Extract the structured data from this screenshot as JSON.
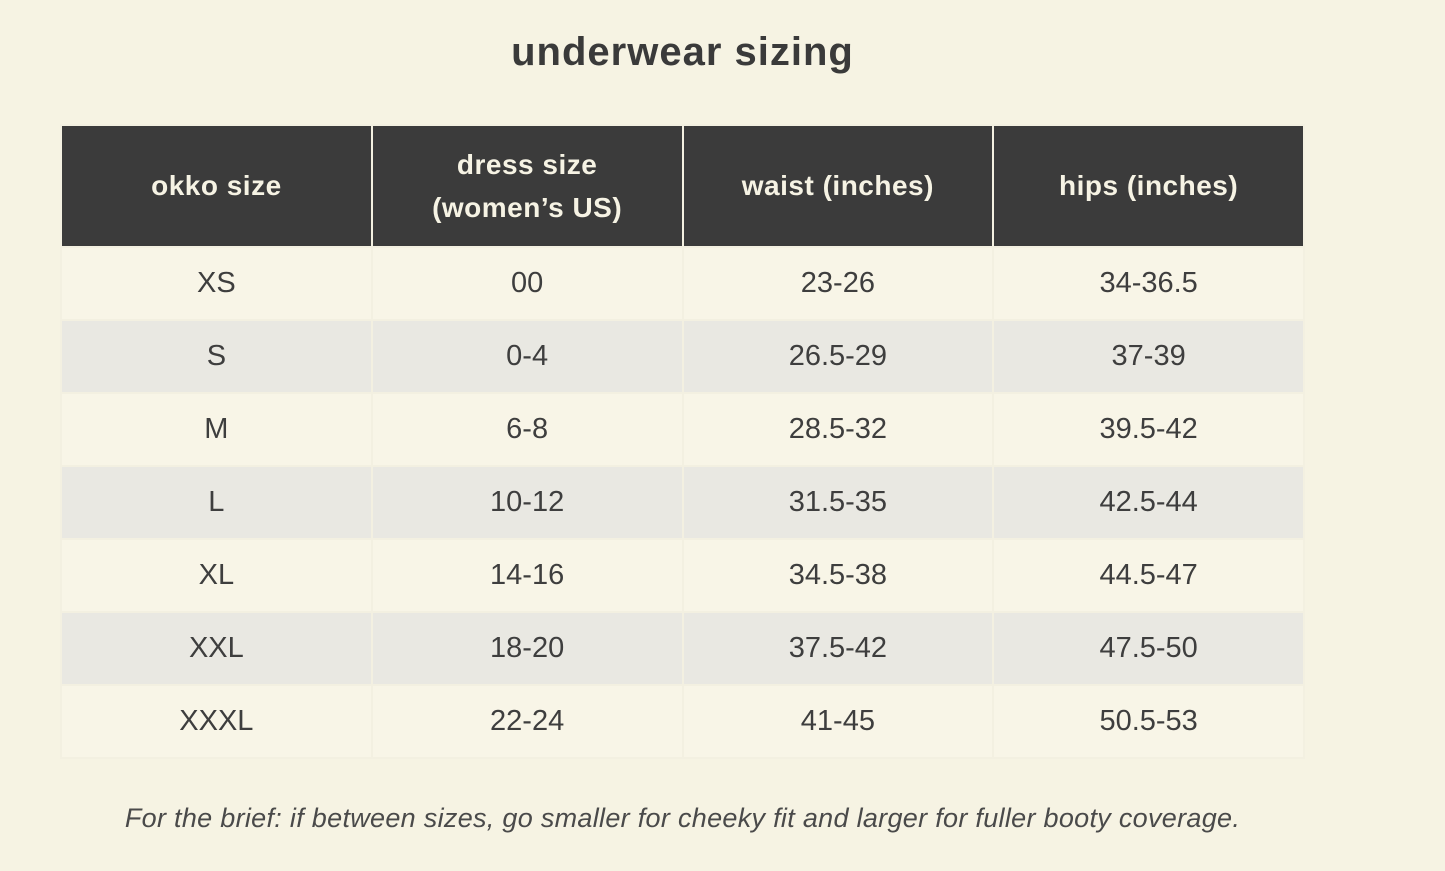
{
  "page": {
    "title": "underwear sizing",
    "note": "For the brief: if between sizes, go smaller for cheeky fit and larger for fuller booty coverage.",
    "colors": {
      "page_background": "#f6f3e3",
      "header_background": "#3b3b3b",
      "header_text": "#f6f3e4",
      "row_cream": "#f8f5e7",
      "row_gray": "#e9e8e2",
      "body_text": "#3e3e3e"
    }
  },
  "table": {
    "columns": [
      {
        "id": "okko-size",
        "label": "okko size",
        "sublabel": ""
      },
      {
        "id": "dress-size",
        "label": "dress size",
        "sublabel": "(women’s US)"
      },
      {
        "id": "waist",
        "label": "waist (inches)",
        "sublabel": ""
      },
      {
        "id": "hips",
        "label": "hips (inches)",
        "sublabel": ""
      }
    ],
    "rows": [
      [
        "XS",
        "00",
        "23-26",
        "34-36.5"
      ],
      [
        "S",
        "0-4",
        "26.5-29",
        "37-39"
      ],
      [
        "M",
        "6-8",
        "28.5-32",
        "39.5-42"
      ],
      [
        "L",
        "10-12",
        "31.5-35",
        "42.5-44"
      ],
      [
        "XL",
        "14-16",
        "34.5-38",
        "44.5-47"
      ],
      [
        "XXL",
        "18-20",
        "37.5-42",
        "47.5-50"
      ],
      [
        "XXXL",
        "22-24",
        "41-45",
        "50.5-53"
      ]
    ]
  }
}
